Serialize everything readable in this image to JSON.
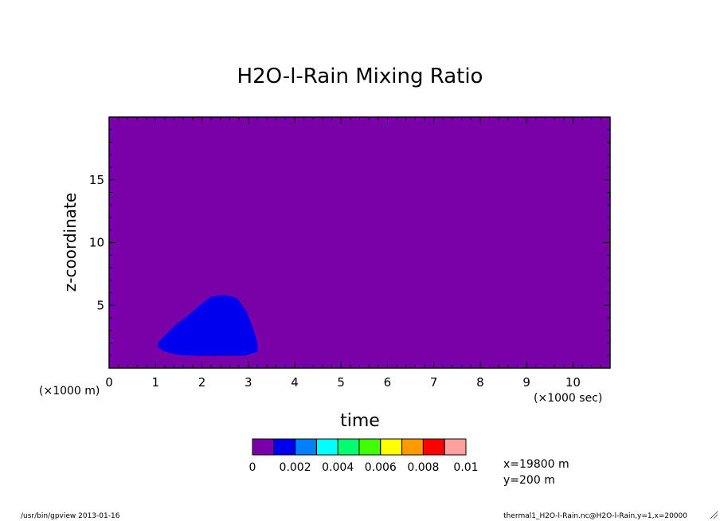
{
  "chart_data": {
    "type": "heatmap",
    "title": "H2O-l-Rain Mixing Ratio",
    "xlabel": "time",
    "ylabel": "z-coordinate",
    "x_unit_label": "(×1000 sec)",
    "y_unit_label": "(×1000 m)",
    "xlim": [
      0,
      10.8
    ],
    "ylim": [
      0,
      20
    ],
    "x_ticks": [
      "0",
      "1",
      "2",
      "3",
      "4",
      "5",
      "6",
      "7",
      "8",
      "9",
      "10"
    ],
    "y_ticks": [
      "5",
      "10",
      "15"
    ],
    "background_value_color": "#7a00a8",
    "field_region": {
      "description_value_band": "0.001–0.002",
      "color": "#0000ee",
      "polygon": [
        [
          1.05,
          1.7
        ],
        [
          1.15,
          1.4
        ],
        [
          1.3,
          1.2
        ],
        [
          1.5,
          1.05
        ],
        [
          1.8,
          1.0
        ],
        [
          2.2,
          0.95
        ],
        [
          2.6,
          0.95
        ],
        [
          2.95,
          1.0
        ],
        [
          3.2,
          1.3
        ],
        [
          3.2,
          2.0
        ],
        [
          3.1,
          3.2
        ],
        [
          2.95,
          4.6
        ],
        [
          2.75,
          5.6
        ],
        [
          2.5,
          5.85
        ],
        [
          2.2,
          5.7
        ],
        [
          1.95,
          5.0
        ],
        [
          1.7,
          4.2
        ],
        [
          1.45,
          3.5
        ],
        [
          1.2,
          2.6
        ],
        [
          1.05,
          2.0
        ]
      ]
    },
    "colorbar": {
      "colors": [
        "#7a00a8",
        "#0000ee",
        "#0080ff",
        "#00ffff",
        "#00ff70",
        "#40ff00",
        "#ffff00",
        "#ff9a00",
        "#ff0000",
        "#ffa0a0"
      ],
      "labels": [
        "0",
        "0.002",
        "0.004",
        "0.006",
        "0.008",
        "0.01"
      ]
    },
    "info": [
      "x=19800 m",
      "y=200 m"
    ]
  },
  "footer": {
    "left": "/usr/bin/gpview  2013-01-16",
    "right": "thermal1_H2O-l-Rain.nc@H2O-l-Rain,y=1,x=20000"
  }
}
